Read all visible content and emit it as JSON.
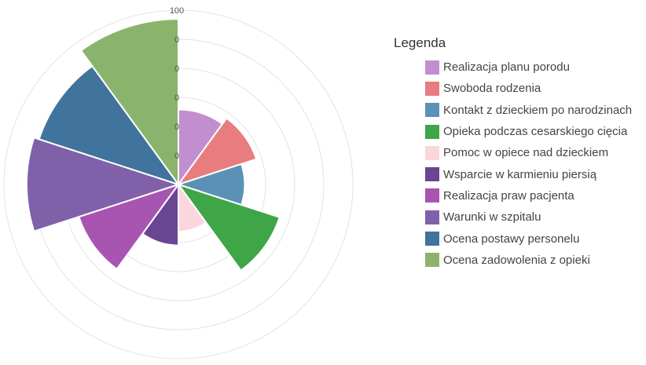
{
  "chart_data": {
    "type": "polar-area",
    "radial_ticks": [
      "100",
      "0",
      "0",
      "0",
      "0",
      "0"
    ],
    "rlim": [
      0,
      100
    ],
    "grid": true,
    "legend_position": "right",
    "legend_title": "Legenda",
    "categories": [
      "Realizacja planu porodu",
      "Swoboda rodzenia",
      "Kontakt z dzieckiem po narodzinach",
      "Opieka podczas cesarskiego cięcia",
      "Pomoc w opiece nad dzieckiem",
      "Wsparcie w karmieniu piersią",
      "Realizacja praw pacjenta",
      "Warunki w szpitalu",
      "Ocena postawy personelu",
      "Ocena zadowolenia z opieki"
    ],
    "values": [
      43,
      47,
      38,
      61,
      27,
      35,
      60,
      87,
      84,
      95
    ],
    "colors": [
      "#c18fd0",
      "#e87c7f",
      "#5c91b7",
      "#3ea646",
      "#fbd6dd",
      "#6a4592",
      "#a855b1",
      "#8061a9",
      "#41749c",
      "#8ab46b"
    ]
  }
}
